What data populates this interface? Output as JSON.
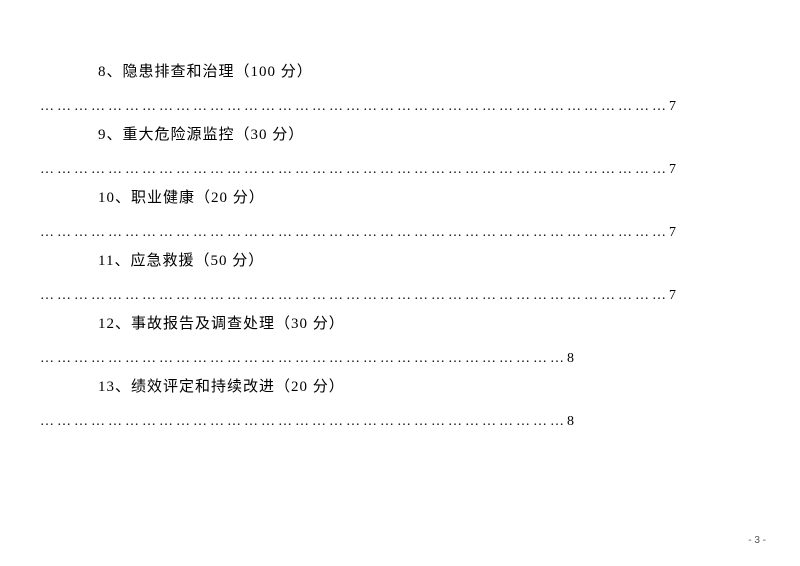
{
  "toc": [
    {
      "num": "8",
      "title": "隐患排查和治理",
      "score": "100",
      "page": "7",
      "dots": "…………………………………………………………………………………………………"
    },
    {
      "num": "9",
      "title": "重大危险源监控",
      "score": "30",
      "page": "7",
      "dots": "…………………………………………………………………………………………………"
    },
    {
      "num": "10",
      "title": "职业健康",
      "score": "20",
      "page": "7",
      "dots": "…………………………………………………………………………………………………"
    },
    {
      "num": "11",
      "title": "应急救援",
      "score": "50",
      "page": "7",
      "dots": "…………………………………………………………………………………………………"
    },
    {
      "num": "12",
      "title": "事故报告及调查处理",
      "score": "30",
      "page": "8",
      "dots": "…………………………………………………………………………………"
    },
    {
      "num": "13",
      "title": "绩效评定和持续改进",
      "score": "20",
      "page": "8",
      "dots": "…………………………………………………………………………………"
    }
  ],
  "footer": {
    "page_label": "- 3 -"
  },
  "style": {
    "background": "#ffffff",
    "text_color": "#000000",
    "title_fontsize": 15,
    "leader_fontsize": 14
  }
}
